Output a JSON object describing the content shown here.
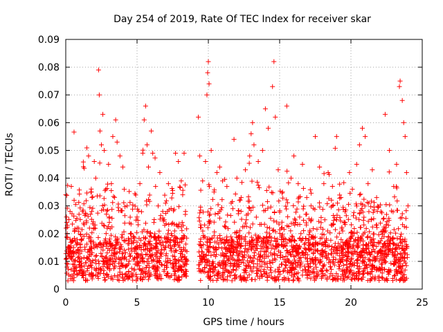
{
  "chart_data": {
    "type": "scatter",
    "title": "Day 254 of 2019, Rate Of TEC Index for receiver skar",
    "xlabel": "GPS time / hours",
    "ylabel": "ROTI / TECUs",
    "xlim": [
      0,
      25
    ],
    "ylim": [
      0,
      0.09
    ],
    "x_ticks": [
      0,
      5,
      10,
      15,
      20,
      25
    ],
    "y_ticks": [
      0,
      0.01,
      0.02,
      0.03,
      0.04,
      0.05,
      0.06,
      0.07,
      0.08,
      0.09
    ],
    "x_tick_labels": [
      "0",
      "5",
      "10",
      "15",
      "20",
      "25"
    ],
    "y_tick_labels": [
      "0",
      "0.01",
      "0.02",
      "0.03",
      "0.04",
      "0.05",
      "0.06",
      "0.07",
      "0.08",
      "0.09"
    ],
    "grid": true,
    "marker": "plus",
    "color": "#ff0000",
    "data_gap": [
      8.5,
      9.3
    ],
    "points": [
      [
        0.0,
        0.034
      ],
      [
        0.05,
        0.026
      ],
      [
        0.1,
        0.02
      ],
      [
        0.15,
        0.003
      ],
      [
        0.2,
        0.012
      ],
      [
        0.3,
        0.018
      ],
      [
        0.5,
        0.009
      ],
      [
        0.8,
        0.022
      ],
      [
        1.1,
        0.011
      ],
      [
        1.4,
        0.027
      ],
      [
        1.6,
        0.048
      ],
      [
        1.8,
        0.035
      ],
      [
        2.0,
        0.046
      ],
      [
        2.1,
        0.04
      ],
      [
        2.3,
        0.079
      ],
      [
        2.35,
        0.07
      ],
      [
        2.4,
        0.057
      ],
      [
        2.5,
        0.052
      ],
      [
        2.6,
        0.063
      ],
      [
        2.7,
        0.05
      ],
      [
        2.8,
        0.036
      ],
      [
        3.0,
        0.045
      ],
      [
        3.2,
        0.038
      ],
      [
        3.3,
        0.055
      ],
      [
        3.5,
        0.061
      ],
      [
        3.6,
        0.053
      ],
      [
        3.8,
        0.048
      ],
      [
        4.0,
        0.044
      ],
      [
        4.1,
        0.036
      ],
      [
        4.3,
        0.03
      ],
      [
        4.6,
        0.02
      ],
      [
        5.0,
        0.026
      ],
      [
        5.2,
        0.038
      ],
      [
        5.4,
        0.049
      ],
      [
        5.5,
        0.061
      ],
      [
        5.6,
        0.066
      ],
      [
        5.7,
        0.052
      ],
      [
        5.8,
        0.044
      ],
      [
        6.0,
        0.057
      ],
      [
        6.1,
        0.049
      ],
      [
        6.3,
        0.037
      ],
      [
        6.6,
        0.042
      ],
      [
        6.8,
        0.028
      ],
      [
        7.0,
        0.031
      ],
      [
        7.2,
        0.038
      ],
      [
        7.4,
        0.02
      ],
      [
        7.7,
        0.049
      ],
      [
        7.9,
        0.046
      ],
      [
        8.1,
        0.039
      ],
      [
        8.2,
        0.034
      ],
      [
        8.3,
        0.049
      ],
      [
        8.4,
        0.028
      ],
      [
        9.3,
        0.062
      ],
      [
        9.4,
        0.048
      ],
      [
        9.6,
        0.039
      ],
      [
        9.8,
        0.046
      ],
      [
        9.9,
        0.07
      ],
      [
        9.95,
        0.078
      ],
      [
        10.0,
        0.082
      ],
      [
        10.05,
        0.074
      ],
      [
        10.2,
        0.05
      ],
      [
        10.4,
        0.035
      ],
      [
        10.6,
        0.042
      ],
      [
        10.8,
        0.044
      ],
      [
        11.0,
        0.039
      ],
      [
        11.3,
        0.037
      ],
      [
        11.6,
        0.031
      ],
      [
        11.8,
        0.054
      ],
      [
        12.0,
        0.04
      ],
      [
        12.3,
        0.033
      ],
      [
        12.6,
        0.043
      ],
      [
        12.9,
        0.048
      ],
      [
        13.0,
        0.056
      ],
      [
        13.1,
        0.06
      ],
      [
        13.2,
        0.052
      ],
      [
        13.5,
        0.046
      ],
      [
        13.8,
        0.05
      ],
      [
        14.0,
        0.065
      ],
      [
        14.2,
        0.058
      ],
      [
        14.5,
        0.073
      ],
      [
        14.6,
        0.082
      ],
      [
        14.7,
        0.062
      ],
      [
        14.9,
        0.043
      ],
      [
        15.2,
        0.035
      ],
      [
        15.5,
        0.066
      ],
      [
        15.8,
        0.04
      ],
      [
        16.0,
        0.048
      ],
      [
        16.3,
        0.038
      ],
      [
        16.6,
        0.045
      ],
      [
        16.9,
        0.033
      ],
      [
        17.2,
        0.03
      ],
      [
        17.5,
        0.055
      ],
      [
        17.8,
        0.044
      ],
      [
        18.1,
        0.038
      ],
      [
        18.4,
        0.042
      ],
      [
        18.7,
        0.03
      ],
      [
        19.0,
        0.025
      ],
      [
        19.3,
        0.033
      ],
      [
        19.6,
        0.024
      ],
      [
        19.9,
        0.042
      ],
      [
        20.1,
        0.036
      ],
      [
        20.4,
        0.045
      ],
      [
        20.6,
        0.052
      ],
      [
        20.8,
        0.058
      ],
      [
        21.0,
        0.055
      ],
      [
        21.2,
        0.038
      ],
      [
        21.5,
        0.043
      ],
      [
        21.8,
        0.033
      ],
      [
        22.1,
        0.028
      ],
      [
        22.4,
        0.063
      ],
      [
        22.7,
        0.05
      ],
      [
        23.0,
        0.037
      ],
      [
        23.2,
        0.045
      ],
      [
        23.4,
        0.073
      ],
      [
        23.45,
        0.075
      ],
      [
        23.6,
        0.068
      ],
      [
        23.7,
        0.06
      ],
      [
        23.8,
        0.055
      ],
      [
        23.9,
        0.042
      ],
      [
        24.0,
        0.03
      ]
    ]
  }
}
